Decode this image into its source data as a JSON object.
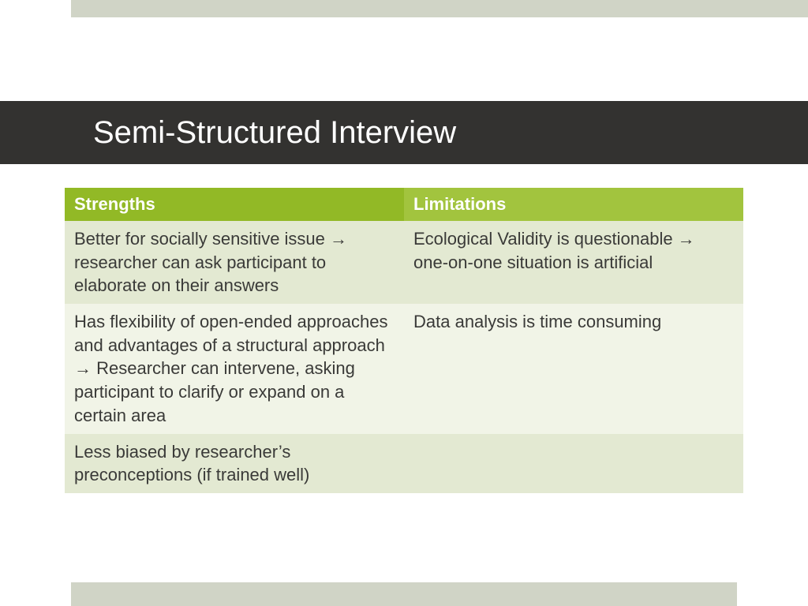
{
  "title": "Semi-Structured Interview",
  "colors": {
    "top_stripe": "#d0d4c6",
    "bottom_stripe": "#d0d4c6",
    "title_bar_bg": "#333230",
    "title_text": "#ffffff",
    "header_bg_left": "#92b926",
    "header_bg_right": "#a2c43e",
    "row_bg_a": "#e3e9d2",
    "row_bg_b": "#f1f4e7",
    "body_text": "#3a3a38"
  },
  "table": {
    "columns": [
      "Strengths",
      "Limitations"
    ],
    "rows": [
      [
        "Better for socially sensitive issue → researcher can ask participant to elaborate on their answers",
        "Ecological Validity is questionable → one-on-one situation is artificial"
      ],
      [
        "Has flexibility of open-ended approaches and advantages of a structural approach → Researcher can intervene, asking participant to clarify or expand on a certain area",
        "Data analysis is time consuming"
      ],
      [
        "Less biased by researcher’s preconceptions (if trained well)",
        ""
      ]
    ],
    "column_widths": [
      "50%",
      "50%"
    ],
    "header_fontsize": 22,
    "body_fontsize": 22
  }
}
